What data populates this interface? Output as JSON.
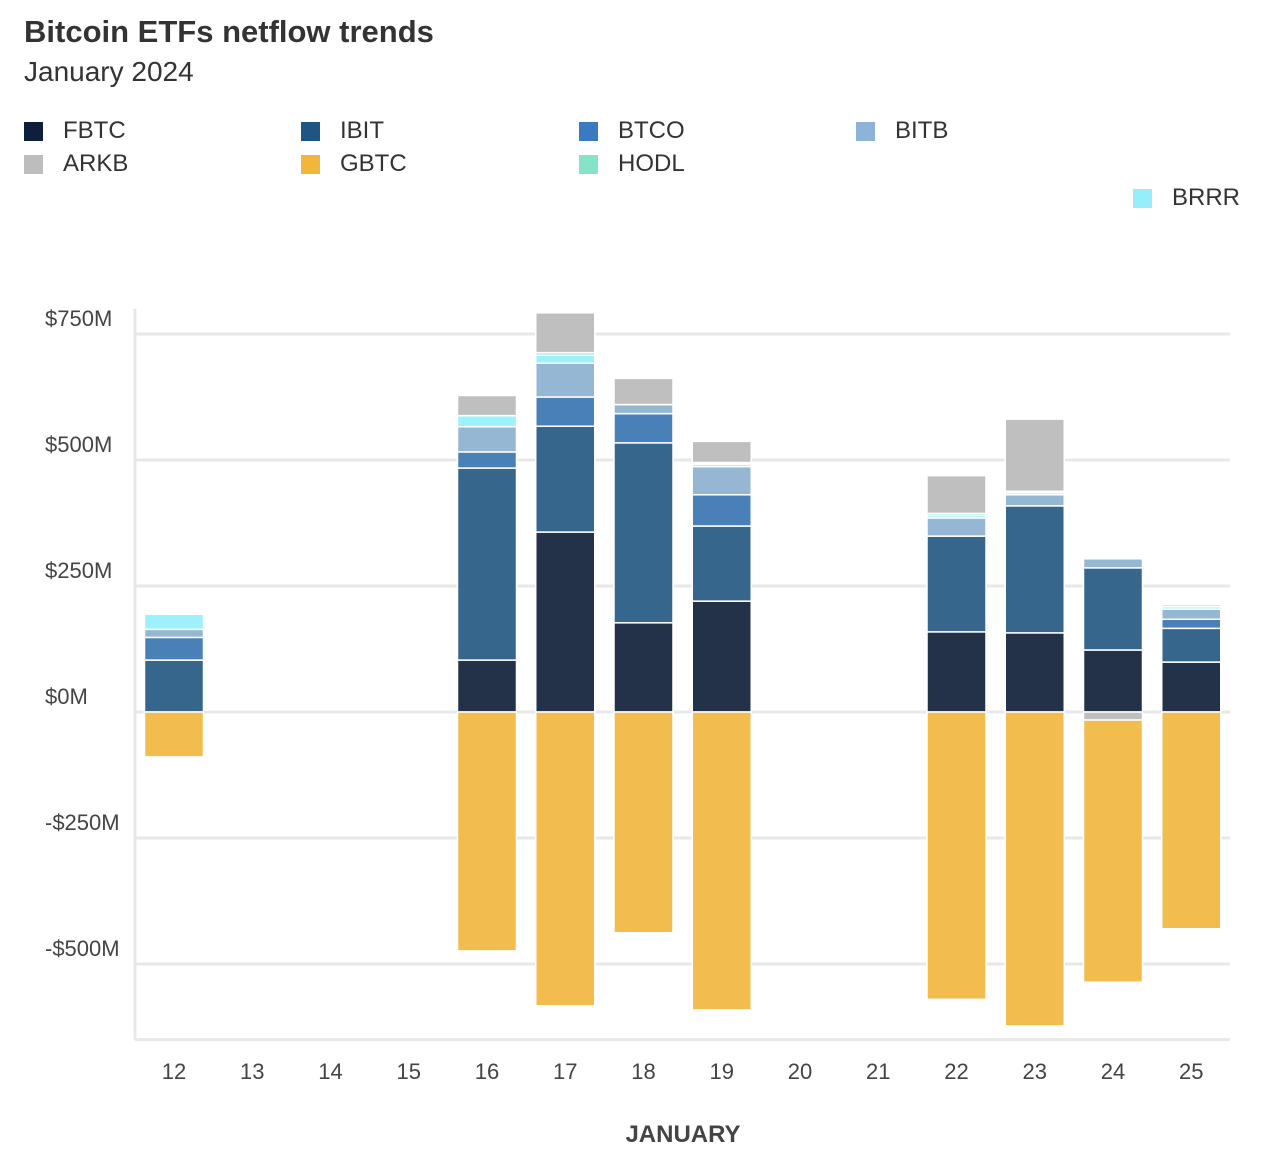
{
  "chart_data": {
    "type": "bar",
    "stacked": true,
    "title": "Bitcoin ETFs netflow trends",
    "subtitle": "January 2024",
    "xlabel": "JANUARY",
    "ylabel": "",
    "categories": [
      "12",
      "13",
      "14",
      "15",
      "16",
      "17",
      "18",
      "19",
      "20",
      "21",
      "22",
      "23",
      "24",
      "25"
    ],
    "ylim": [
      -650,
      800
    ],
    "yticks": [
      750,
      500,
      250,
      0,
      -250,
      -500
    ],
    "ytick_labels": [
      "$750M",
      "$500M",
      "$250M",
      "$0M",
      "-$250M",
      "-$500M"
    ],
    "units": "$M",
    "grid": true,
    "legend_position": "top",
    "series": [
      {
        "name": "FBTC",
        "color": "#0e1f3b",
        "values": [
          0,
          null,
          null,
          null,
          103,
          357,
          177,
          220,
          null,
          null,
          159,
          157,
          123,
          99
        ]
      },
      {
        "name": "IBIT",
        "color": "#1f5583",
        "values": [
          103,
          null,
          null,
          null,
          381,
          210,
          357,
          149,
          null,
          null,
          190,
          252,
          163,
          67
        ]
      },
      {
        "name": "BTCO",
        "color": "#3a7bbf",
        "values": [
          45,
          null,
          null,
          null,
          32,
          58,
          58,
          62,
          null,
          null,
          0,
          0,
          0,
          18
        ]
      },
      {
        "name": "BITB",
        "color": "#8db3d8",
        "values": [
          16,
          null,
          null,
          null,
          50,
          67,
          18,
          56,
          null,
          null,
          36,
          22,
          18,
          20
        ]
      },
      {
        "name": "ARKB",
        "color": "#bdbdbd",
        "values": [
          0,
          null,
          null,
          null,
          40,
          79,
          52,
          42,
          null,
          null,
          75,
          143,
          -16,
          0
        ]
      },
      {
        "name": "GBTC",
        "color": "#f2b63a",
        "values": [
          -89,
          null,
          null,
          null,
          -474,
          -583,
          -438,
          -591,
          null,
          null,
          -570,
          -623,
          -520,
          -430
        ]
      },
      {
        "name": "HODL",
        "color": "#86e3c8",
        "values": [
          0,
          null,
          null,
          null,
          0,
          5,
          0,
          3,
          null,
          null,
          4,
          3,
          2,
          4
        ]
      },
      {
        "name": "BRRR",
        "color": "#96eefc",
        "values": [
          30,
          null,
          null,
          null,
          22,
          16,
          0,
          5,
          null,
          null,
          5,
          4,
          2,
          5
        ]
      }
    ]
  }
}
